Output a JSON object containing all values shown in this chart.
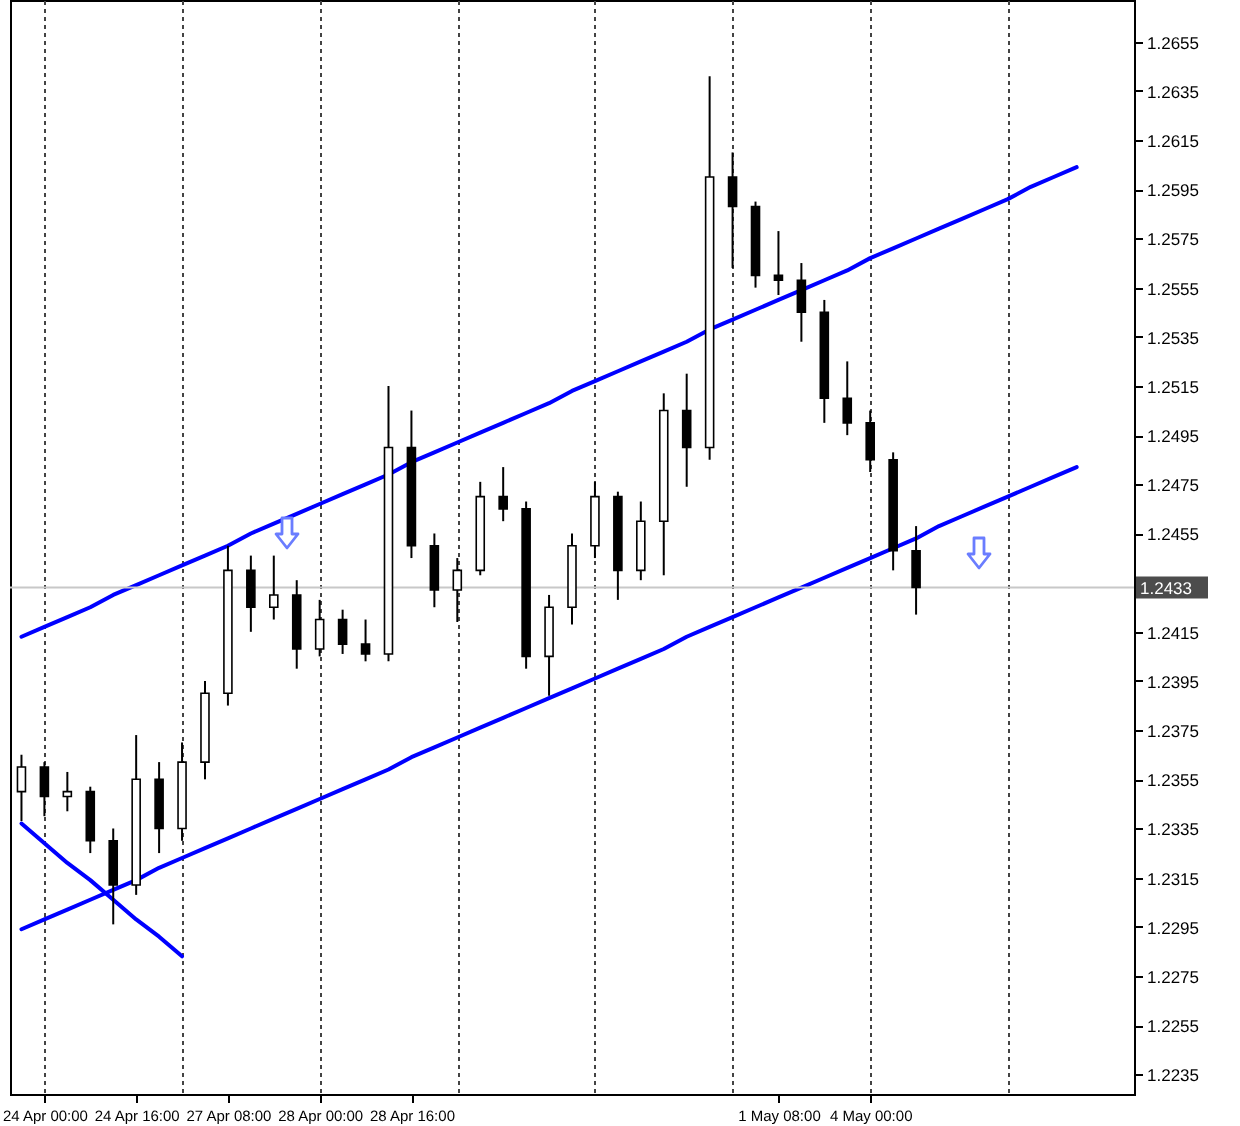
{
  "chart_data": {
    "type": "candlestick",
    "categories": [
      null,
      "24 Apr 00:00",
      null,
      null,
      null,
      "24 Apr 16:00",
      null,
      null,
      null,
      "27 Apr 08:00",
      null,
      null,
      null,
      "28 Apr 00:00",
      null,
      null,
      null,
      "28 Apr 16:00",
      null,
      null,
      null,
      null,
      null,
      null,
      null,
      null,
      null,
      null,
      null,
      null,
      null,
      null,
      null,
      "1 May 08:00",
      null,
      null,
      null,
      "4 May 00:00",
      null,
      null,
      null,
      null,
      null,
      null,
      null,
      null,
      null,
      null,
      null
    ],
    "ohlc": [
      [
        1.235,
        1.2365,
        1.2338,
        1.236
      ],
      [
        1.236,
        1.2362,
        1.234,
        1.2348
      ],
      [
        1.2348,
        1.2358,
        1.2342,
        1.235
      ],
      [
        1.235,
        1.2352,
        1.2325,
        1.233
      ],
      [
        1.233,
        1.2335,
        1.2296,
        1.2312
      ],
      [
        1.2312,
        1.2373,
        1.2308,
        1.2355
      ],
      [
        1.2355,
        1.2362,
        1.2325,
        1.2335
      ],
      [
        1.2335,
        1.237,
        1.233,
        1.2362
      ],
      [
        1.2362,
        1.2395,
        1.2355,
        1.239
      ],
      [
        1.239,
        1.245,
        1.2385,
        1.244
      ],
      [
        1.244,
        1.2446,
        1.2415,
        1.2425
      ],
      [
        1.2425,
        1.2446,
        1.242,
        1.243
      ],
      [
        1.243,
        1.2436,
        1.24,
        1.2408
      ],
      [
        1.2408,
        1.2428,
        1.2405,
        1.242
      ],
      [
        1.242,
        1.2424,
        1.2406,
        1.241
      ],
      [
        1.241,
        1.242,
        1.2403,
        1.2406
      ],
      [
        1.2406,
        1.2515,
        1.2403,
        1.249
      ],
      [
        1.249,
        1.2505,
        1.2445,
        1.245
      ],
      [
        1.245,
        1.2455,
        1.2425,
        1.2432
      ],
      [
        1.2432,
        1.2445,
        1.2419,
        1.244
      ],
      [
        1.244,
        1.2476,
        1.2438,
        1.247
      ],
      [
        1.247,
        1.2482,
        1.246,
        1.2465
      ],
      [
        1.2465,
        1.2468,
        1.24,
        1.2405
      ],
      [
        1.2405,
        1.243,
        1.2389,
        1.2425
      ],
      [
        1.2425,
        1.2455,
        1.2418,
        1.245
      ],
      [
        1.245,
        1.2476,
        1.2445,
        1.247
      ],
      [
        1.247,
        1.2472,
        1.2428,
        1.244
      ],
      [
        1.244,
        1.2468,
        1.2436,
        1.246
      ],
      [
        1.246,
        1.2512,
        1.2438,
        1.2505
      ],
      [
        1.2505,
        1.252,
        1.2474,
        1.249
      ],
      [
        1.249,
        1.2641,
        1.2485,
        1.26
      ],
      [
        1.26,
        1.261,
        1.2563,
        1.2588
      ],
      [
        1.2588,
        1.259,
        1.2555,
        1.256
      ],
      [
        1.256,
        1.2578,
        1.2552,
        1.2558
      ],
      [
        1.2558,
        1.2565,
        1.2533,
        1.2545
      ],
      [
        1.2545,
        1.255,
        1.25,
        1.251
      ],
      [
        1.251,
        1.2525,
        1.2495,
        1.25
      ],
      [
        1.25,
        1.2505,
        1.248,
        1.2485
      ],
      [
        1.2485,
        1.2488,
        1.244,
        1.2448
      ],
      [
        1.2448,
        1.2458,
        1.2422,
        1.2433
      ],
      null,
      null,
      null,
      null,
      null,
      null,
      null,
      null,
      null
    ],
    "color": "#000000",
    "series": [
      {
        "type": "line",
        "color": "#0000ff",
        "values": [
          1.2413,
          1.2417,
          1.2421,
          1.2425,
          1.243,
          1.2434,
          1.2438,
          1.2442,
          1.2446,
          1.245,
          1.2455,
          1.2459,
          1.2463,
          1.2467,
          1.2471,
          1.2475,
          1.2479,
          1.2484,
          1.2488,
          1.2492,
          1.2496,
          1.25,
          1.2504,
          1.2508,
          1.2513,
          1.2517,
          1.2521,
          1.2525,
          1.2529,
          1.2533,
          1.2538,
          1.2542,
          1.2546,
          1.255,
          1.2554,
          1.2558,
          1.2562,
          1.2567,
          1.2571,
          1.2575,
          1.2579,
          1.2583,
          1.2587,
          1.2591,
          1.2596,
          1.26,
          1.2604,
          null,
          null
        ]
      },
      {
        "type": "line",
        "color": "#0000ff",
        "values": [
          1.2294,
          1.2298,
          1.2302,
          1.2306,
          1.231,
          1.2314,
          1.2319,
          1.2323,
          1.2327,
          1.2331,
          1.2335,
          1.2339,
          1.2343,
          1.2347,
          1.2351,
          1.2355,
          1.2359,
          1.2364,
          1.2368,
          1.2372,
          1.2376,
          1.238,
          1.2384,
          1.2388,
          1.2392,
          1.2396,
          1.24,
          1.2404,
          1.2408,
          1.2413,
          1.2417,
          1.2421,
          1.2425,
          1.2429,
          1.2433,
          1.2437,
          1.2441,
          1.2445,
          1.2449,
          1.2453,
          1.2458,
          1.2462,
          1.2466,
          1.247,
          1.2474,
          1.2478,
          1.2482,
          null,
          null
        ]
      },
      {
        "type": "line",
        "color": "#0000ff",
        "values": [
          1.2337,
          1.2329,
          1.2321,
          1.2314,
          1.2306,
          1.2298,
          1.2291,
          1.2283,
          null,
          null,
          null,
          null,
          null,
          null,
          null,
          null,
          null,
          null,
          null,
          null,
          null,
          null,
          null,
          null,
          null,
          null,
          null,
          null,
          null,
          null,
          null,
          null,
          null,
          null,
          null,
          null,
          null,
          null,
          null,
          null,
          null,
          null,
          null,
          null,
          null,
          null,
          null,
          null,
          null
        ]
      }
    ],
    "ylim": [
      1.2227,
      1.2672
    ],
    "yticks": [
      1.2235,
      1.2255,
      1.2275,
      1.2295,
      1.2315,
      1.2335,
      1.2355,
      1.2375,
      1.2395,
      1.2415,
      1.2455,
      1.2475,
      1.2495,
      1.2515,
      1.2535,
      1.2555,
      1.2575,
      1.2595,
      1.2615,
      1.2635,
      1.2655
    ],
    "grid": "x",
    "ref_lines": [
      {
        "axis": "y",
        "value": 1.2433,
        "label": "1.2433",
        "color": "#c8c8c8"
      }
    ]
  }
}
